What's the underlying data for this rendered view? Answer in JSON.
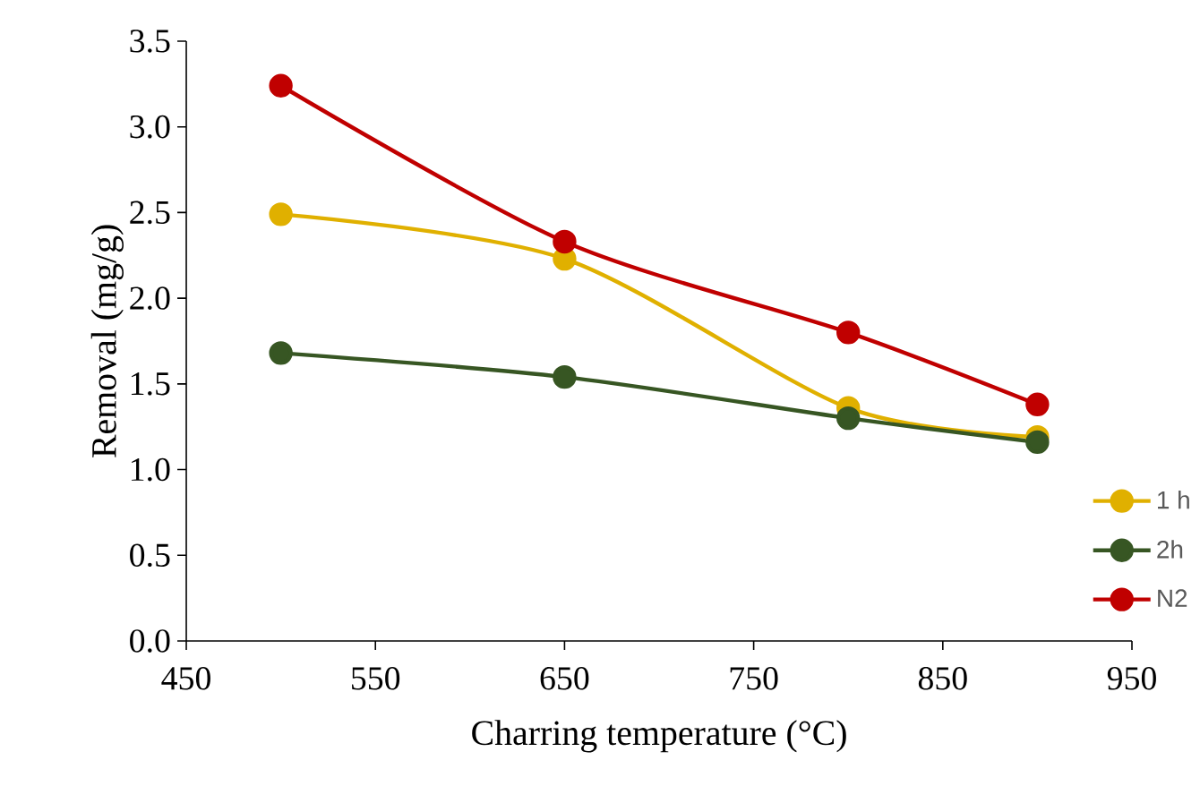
{
  "chart_data": {
    "type": "line",
    "xlabel": "Charring temperature (°C)",
    "ylabel": "Removal (mg/g)",
    "x": [
      500,
      650,
      800,
      900
    ],
    "series": [
      {
        "name": "1 h",
        "color": "#e0b000",
        "values": [
          2.49,
          2.23,
          1.36,
          1.19
        ]
      },
      {
        "name": "2h",
        "color": "#375623",
        "values": [
          1.68,
          1.54,
          1.3,
          1.16
        ]
      },
      {
        "name": "N2",
        "color": "#c00000",
        "values": [
          3.24,
          2.33,
          1.8,
          1.38
        ]
      }
    ],
    "xlim": [
      450,
      950
    ],
    "xticks": [
      450,
      550,
      650,
      750,
      850,
      950
    ],
    "ylim": [
      0,
      3.5
    ],
    "yticks": [
      {
        "value": 0,
        "label": "0.0"
      },
      {
        "value": 0.5,
        "label": "0.5"
      },
      {
        "value": 1,
        "label": "1.0"
      },
      {
        "value": 1.5,
        "label": "1.5"
      },
      {
        "value": 2,
        "label": "2.0"
      },
      {
        "value": 2.5,
        "label": "2.5"
      },
      {
        "value": 3,
        "label": "3.0"
      },
      {
        "value": 3.5,
        "label": "3.5"
      }
    ],
    "grid": false,
    "legend": "bottom right",
    "marker": "circle",
    "line_style": "solid"
  }
}
